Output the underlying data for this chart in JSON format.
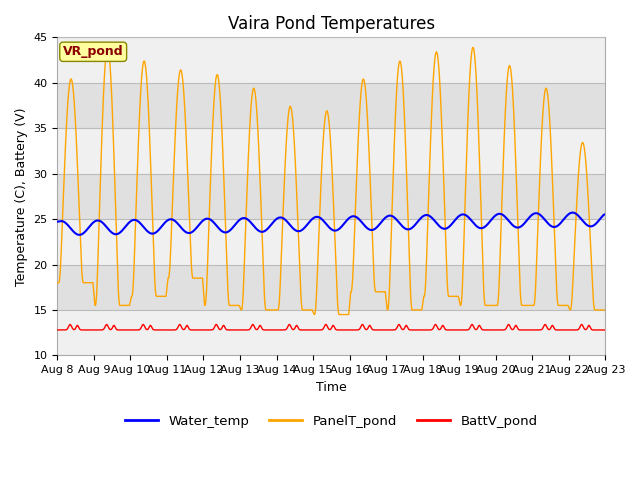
{
  "title": "Vaira Pond Temperatures",
  "xlabel": "Time",
  "ylabel": "Temperature (C), Battery (V)",
  "ylim": [
    10,
    45
  ],
  "x_tick_labels": [
    "Aug 8",
    "Aug 9",
    "Aug 10",
    "Aug 11",
    "Aug 12",
    "Aug 13",
    "Aug 14",
    "Aug 15",
    "Aug 16",
    "Aug 17",
    "Aug 18",
    "Aug 19",
    "Aug 20",
    "Aug 21",
    "Aug 22",
    "Aug 23"
  ],
  "annotation_text": "VR_pond",
  "annotation_color": "#8B0000",
  "annotation_bg": "#FFFFA0",
  "water_temp_color": "#0000FF",
  "panel_temp_color": "#FFA500",
  "batt_color": "#FF0000",
  "grid_color": "#BBBBBB",
  "bg_color_light": "#EBEBEB",
  "bg_color_dark": "#D8D8D8",
  "legend_labels": [
    "Water_temp",
    "PanelT_pond",
    "BattV_pond"
  ],
  "title_fontsize": 12,
  "label_fontsize": 9,
  "tick_fontsize": 8
}
